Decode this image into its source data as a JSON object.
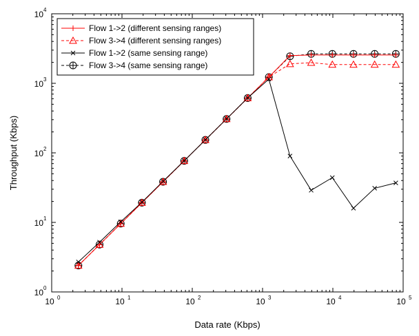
{
  "chart_data": {
    "type": "line",
    "title": "",
    "xlabel": "Data rate (Kbps)",
    "ylabel": "Throughput (Kbps)",
    "xscale": "log",
    "yscale": "log",
    "xlim": [
      1,
      100000
    ],
    "ylim": [
      1,
      10000
    ],
    "x_ticks": [
      1,
      10,
      100,
      1000,
      10000,
      100000
    ],
    "y_ticks": [
      1,
      10,
      100,
      1000,
      10000
    ],
    "x_tick_labels": [
      {
        "base": "10",
        "exp": "0"
      },
      {
        "base": "10",
        "exp": "1"
      },
      {
        "base": "10",
        "exp": "2"
      },
      {
        "base": "10",
        "exp": "3"
      },
      {
        "base": "10",
        "exp": "4"
      },
      {
        "base": "10",
        "exp": "5"
      }
    ],
    "y_tick_labels": [
      {
        "base": "10",
        "exp": "0"
      },
      {
        "base": "10",
        "exp": "1"
      },
      {
        "base": "10",
        "exp": "2"
      },
      {
        "base": "10",
        "exp": "3"
      },
      {
        "base": "10",
        "exp": "4"
      }
    ],
    "grid": false,
    "legend_position": "top-left",
    "x": [
      2.4,
      4.8,
      9.6,
      19.2,
      38.4,
      76.8,
      153.6,
      307.2,
      614.4,
      1228.8,
      2457.6,
      4915.2,
      9830.4,
      19660.8,
      39321.6,
      78643.2
    ],
    "series": [
      {
        "name": "Flow 1->2 (different sensing ranges)",
        "color": "#ff0000",
        "line_style": "solid",
        "marker": "plus",
        "values": [
          2.4,
          4.8,
          9.6,
          19.2,
          38.4,
          76.8,
          153.6,
          307.2,
          614.4,
          1228.8,
          2500,
          2550,
          2550,
          2550,
          2550,
          2550
        ]
      },
      {
        "name": "Flow 3->4 (different sensing ranges)",
        "color": "#ff0000",
        "line_style": "dashed",
        "marker": "triangle",
        "values": [
          2.4,
          4.8,
          9.6,
          19.2,
          38.4,
          76.8,
          153.6,
          307.2,
          614.4,
          1228.8,
          1900,
          1980,
          1860,
          1860,
          1860,
          1860
        ]
      },
      {
        "name": "Flow 1->2 (same sensing range)",
        "color": "#000000",
        "line_style": "solid",
        "marker": "x",
        "values": [
          2.7,
          5.2,
          10.2,
          19.5,
          39,
          77,
          154,
          308,
          615,
          1150,
          90,
          29,
          44,
          16,
          31,
          37
        ]
      },
      {
        "name": "Flow 3->4 (same sensing range)",
        "color": "#000000",
        "line_style": "dashed",
        "marker": "circle",
        "values": [
          2.4,
          4.8,
          9.6,
          19.2,
          38.4,
          76.8,
          153.6,
          307.2,
          614.4,
          1228.8,
          2450,
          2650,
          2650,
          2650,
          2650,
          2650
        ]
      }
    ]
  }
}
